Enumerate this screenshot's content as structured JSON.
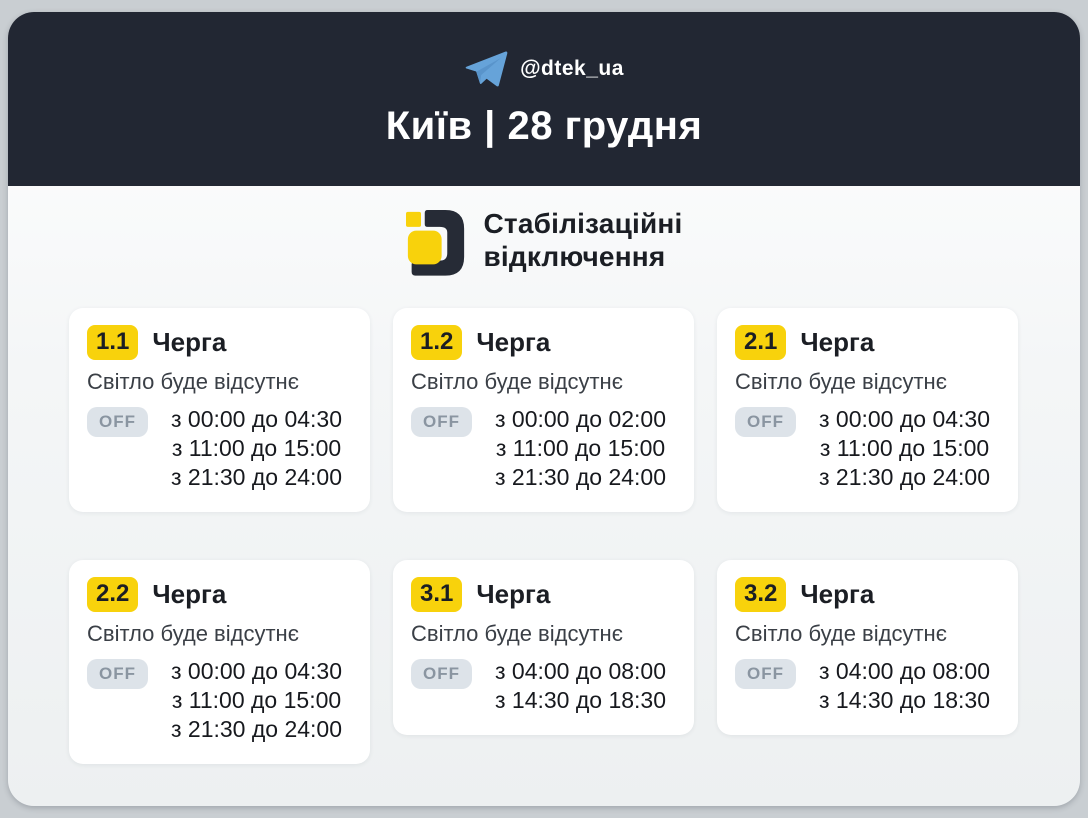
{
  "header": {
    "channel_handle": "@dtek_ua",
    "title": "Київ | 28 грудня"
  },
  "brand": {
    "heading_line1": "Стабілізаційні",
    "heading_line2": "відключення"
  },
  "card_labels": {
    "queue": "Черга",
    "no_light": "Світло буде відсутнє",
    "off": "OFF"
  },
  "queues": [
    {
      "number": "1.1",
      "times": [
        "з 00:00 до 04:30",
        "з 11:00 до 15:00",
        "з 21:30 до 24:00"
      ]
    },
    {
      "number": "1.2",
      "times": [
        "з 00:00 до 02:00",
        "з 11:00 до 15:00",
        "з 21:30 до 24:00"
      ]
    },
    {
      "number": "2.1",
      "times": [
        "з 00:00 до 04:30",
        "з 11:00 до 15:00",
        "з 21:30 до 24:00"
      ]
    },
    {
      "number": "2.2",
      "times": [
        "з 00:00 до 04:30",
        "з 11:00 до 15:00",
        "з 21:30 до 24:00"
      ]
    },
    {
      "number": "3.1",
      "times": [
        "з 04:00 до 08:00",
        "з 14:30 до 18:30"
      ]
    },
    {
      "number": "3.2",
      "times": [
        "з 04:00 до 08:00",
        "з 14:30 до 18:30"
      ]
    }
  ],
  "colors": {
    "header_bg": "#222733",
    "accent_yellow": "#f8d20c",
    "telegram_blue": "#66a3d9",
    "off_pill_bg": "#dde3e9",
    "off_pill_text": "#8a95a1",
    "page_bg": "#c9ced2",
    "card_bg": "#ffffff",
    "text_dark": "#1b1e24"
  }
}
